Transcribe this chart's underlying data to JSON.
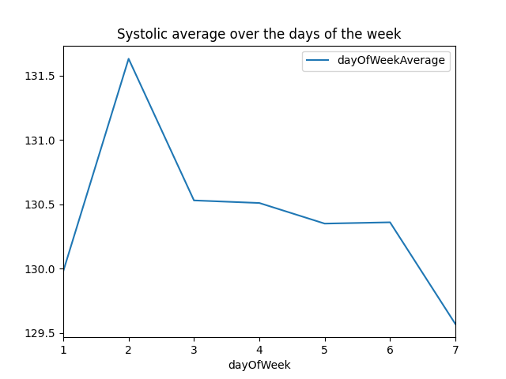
{
  "x": [
    1,
    2,
    3,
    4,
    5,
    6,
    7
  ],
  "y": [
    129.98,
    131.63,
    130.53,
    130.51,
    130.35,
    130.36,
    129.57
  ],
  "title": "Systolic average over the days of the week",
  "xlabel": "dayOfWeek",
  "ylabel": "",
  "legend_label": "dayOfWeekAverage",
  "line_color": "#1f77b4",
  "xlim": [
    1,
    7
  ],
  "ylim": [
    129.5,
    131.7
  ],
  "figsize": [
    6.4,
    4.8
  ],
  "dpi": 100
}
